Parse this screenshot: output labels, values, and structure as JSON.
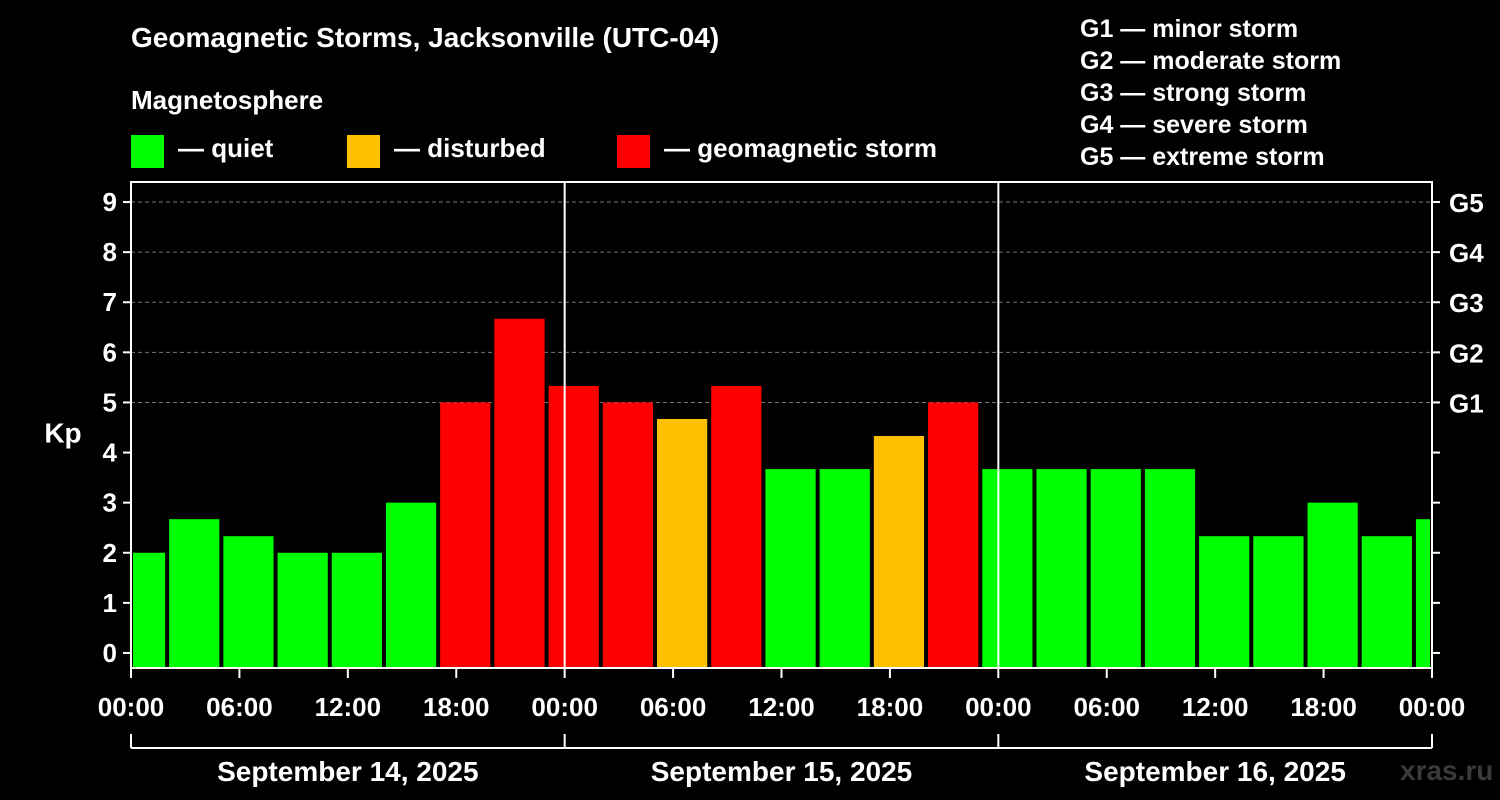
{
  "header": {
    "title": "Geomagnetic Storms, Jacksonville (UTC-04)",
    "subtitle": "Magnetosphere"
  },
  "legend": [
    {
      "label": "— quiet",
      "color": "#00ff00"
    },
    {
      "label": "— disturbed",
      "color": "#ffc000"
    },
    {
      "label": "— geomagnetic storm",
      "color": "#ff0000"
    }
  ],
  "storm_scale": [
    "G1 — minor storm",
    "G2 — moderate storm",
    "G3 — strong storm",
    "G4 — severe storm",
    "G5 — extreme storm"
  ],
  "watermark": "xras.ru",
  "colors": {
    "quiet": "#00ff00",
    "disturbed": "#ffc000",
    "storm": "#ff0000",
    "background": "#000000",
    "axis": "#ffffff"
  },
  "chart_data": {
    "type": "bar",
    "title": "Geomagnetic Storms, Jacksonville (UTC-04)",
    "ylabel": "Kp",
    "ylim": [
      -0.3,
      9.4
    ],
    "y_ticks": [
      0,
      1,
      2,
      3,
      4,
      5,
      6,
      7,
      8,
      9
    ],
    "g_ticks": [
      {
        "kp": 5,
        "label": "G1"
      },
      {
        "kp": 6,
        "label": "G2"
      },
      {
        "kp": 7,
        "label": "G3"
      },
      {
        "kp": 8,
        "label": "G4"
      },
      {
        "kp": 9,
        "label": "G5"
      }
    ],
    "x_range_hours": [
      0,
      72
    ],
    "x_ticks": [
      {
        "h": 0,
        "label": "00:00"
      },
      {
        "h": 6,
        "label": "06:00"
      },
      {
        "h": 12,
        "label": "12:00"
      },
      {
        "h": 18,
        "label": "18:00"
      },
      {
        "h": 24,
        "label": "00:00"
      },
      {
        "h": 30,
        "label": "06:00"
      },
      {
        "h": 36,
        "label": "12:00"
      },
      {
        "h": 42,
        "label": "18:00"
      },
      {
        "h": 48,
        "label": "00:00"
      },
      {
        "h": 54,
        "label": "06:00"
      },
      {
        "h": 60,
        "label": "12:00"
      },
      {
        "h": 66,
        "label": "18:00"
      },
      {
        "h": 72,
        "label": "00:00"
      }
    ],
    "days": [
      {
        "label": "September 14, 2025",
        "start": 0,
        "end": 24
      },
      {
        "label": "September 15, 2025",
        "start": 24,
        "end": 48
      },
      {
        "label": "September 16, 2025",
        "start": 48,
        "end": 72
      }
    ],
    "bars": [
      {
        "start": 0,
        "end": 2,
        "kp": 2.0,
        "level": "quiet"
      },
      {
        "start": 2,
        "end": 5,
        "kp": 2.67,
        "level": "quiet"
      },
      {
        "start": 5,
        "end": 8,
        "kp": 2.33,
        "level": "quiet"
      },
      {
        "start": 8,
        "end": 11,
        "kp": 2.0,
        "level": "quiet"
      },
      {
        "start": 11,
        "end": 14,
        "kp": 2.0,
        "level": "quiet"
      },
      {
        "start": 14,
        "end": 17,
        "kp": 3.0,
        "level": "quiet"
      },
      {
        "start": 17,
        "end": 20,
        "kp": 5.0,
        "level": "storm"
      },
      {
        "start": 20,
        "end": 23,
        "kp": 6.67,
        "level": "storm"
      },
      {
        "start": 23,
        "end": 26,
        "kp": 5.33,
        "level": "storm"
      },
      {
        "start": 26,
        "end": 29,
        "kp": 5.0,
        "level": "storm"
      },
      {
        "start": 29,
        "end": 32,
        "kp": 4.67,
        "level": "disturbed"
      },
      {
        "start": 32,
        "end": 35,
        "kp": 5.33,
        "level": "storm"
      },
      {
        "start": 35,
        "end": 38,
        "kp": 3.67,
        "level": "quiet"
      },
      {
        "start": 38,
        "end": 41,
        "kp": 3.67,
        "level": "quiet"
      },
      {
        "start": 41,
        "end": 44,
        "kp": 4.33,
        "level": "disturbed"
      },
      {
        "start": 44,
        "end": 47,
        "kp": 5.0,
        "level": "storm"
      },
      {
        "start": 47,
        "end": 50,
        "kp": 3.67,
        "level": "quiet"
      },
      {
        "start": 50,
        "end": 53,
        "kp": 3.67,
        "level": "quiet"
      },
      {
        "start": 53,
        "end": 56,
        "kp": 3.67,
        "level": "quiet"
      },
      {
        "start": 56,
        "end": 59,
        "kp": 3.67,
        "level": "quiet"
      },
      {
        "start": 59,
        "end": 62,
        "kp": 2.33,
        "level": "quiet"
      },
      {
        "start": 62,
        "end": 65,
        "kp": 2.33,
        "level": "quiet"
      },
      {
        "start": 65,
        "end": 68,
        "kp": 3.0,
        "level": "quiet"
      },
      {
        "start": 68,
        "end": 71,
        "kp": 2.33,
        "level": "quiet"
      },
      {
        "start": 71,
        "end": 72,
        "kp": 2.67,
        "level": "quiet"
      }
    ]
  }
}
